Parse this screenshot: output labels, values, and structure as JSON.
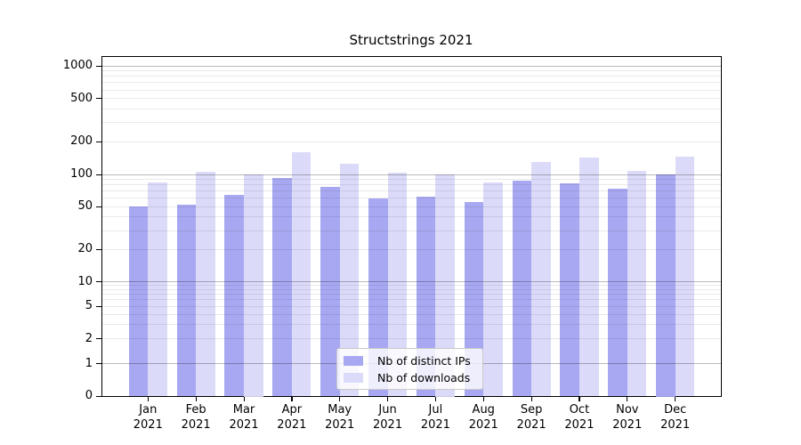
{
  "chart_data": {
    "type": "bar",
    "title": "Structstrings 2021",
    "categories": [
      "Jan 2021",
      "Feb 2021",
      "Mar 2021",
      "Apr 2021",
      "May 2021",
      "Jun 2021",
      "Jul 2021",
      "Aug 2021",
      "Sep 2021",
      "Oct 2021",
      "Nov 2021",
      "Dec 2021"
    ],
    "series": [
      {
        "name": "Nb of distinct IPs",
        "color": "#a8a8f2",
        "values": [
          50,
          52,
          65,
          92,
          77,
          60,
          62,
          55,
          87,
          83,
          74,
          100
        ]
      },
      {
        "name": "Nb of downloads",
        "color": "#dbdbf9",
        "values": [
          85,
          105,
          100,
          159,
          126,
          103,
          100,
          84,
          130,
          144,
          108,
          146
        ]
      }
    ],
    "y_axis": {
      "scale": "symlog",
      "tick_labels": [
        "1000",
        "500",
        "200",
        "100",
        "50",
        "20",
        "10",
        "5",
        "2",
        "1",
        "0"
      ],
      "tick_values": [
        1000,
        500,
        200,
        100,
        50,
        20,
        10,
        5,
        2,
        1,
        0
      ],
      "ylim": [
        0,
        1000
      ],
      "major_grid_values": [
        1,
        10,
        100,
        1000
      ]
    },
    "legend": {
      "position": "lower center",
      "entries": [
        "Nb of distinct IPs",
        "Nb of downloads"
      ]
    },
    "grid": "horizontal major+minor, drawn over bars"
  }
}
